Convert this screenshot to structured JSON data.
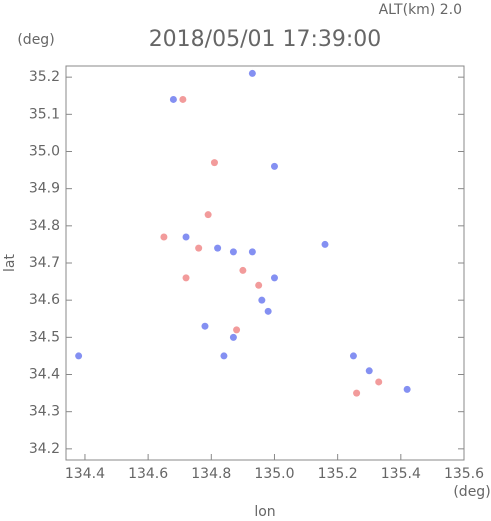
{
  "chart_data": {
    "type": "scatter",
    "title": "2018/05/01 17:39:00",
    "subtitle": "ALT(km) 2.0",
    "y_unit": "(deg)",
    "x_unit": "(deg)",
    "x_label": "lon",
    "y_label": "lat",
    "xlim": [
      134.34,
      135.6
    ],
    "ylim": [
      34.17,
      35.23
    ],
    "xticks": [
      134.4,
      134.6,
      134.8,
      {
        "value": 135,
        "label": "135.0"
      },
      135.2,
      135.4,
      135.6
    ],
    "yticks": [
      34.2,
      34.3,
      34.4,
      34.5,
      34.6,
      34.7,
      34.8,
      34.9,
      {
        "value": 35,
        "label": "35.0"
      },
      35.1,
      35.2
    ],
    "series": [
      {
        "color": "#6f7cf0",
        "x": [
          134.38,
          134.93,
          134.68,
          134.72,
          134.82,
          134.87,
          134.93,
          135.0,
          134.96,
          134.78,
          134.87,
          135.0,
          135.16,
          135.25,
          135.3,
          135.42,
          134.84,
          134.98
        ],
        "y": [
          34.45,
          35.21,
          35.14,
          34.77,
          34.74,
          34.73,
          34.73,
          34.66,
          34.6,
          34.53,
          34.5,
          34.96,
          34.75,
          34.45,
          34.41,
          34.36,
          34.45,
          34.57
        ]
      },
      {
        "color": "#f08a8a",
        "x": [
          134.65,
          134.79,
          134.76,
          134.9,
          134.95,
          134.72,
          134.88,
          135.26,
          135.33,
          134.81,
          134.71
        ],
        "y": [
          34.77,
          34.83,
          34.74,
          34.68,
          34.64,
          34.66,
          34.52,
          34.35,
          34.38,
          34.97,
          35.14
        ]
      }
    ]
  }
}
